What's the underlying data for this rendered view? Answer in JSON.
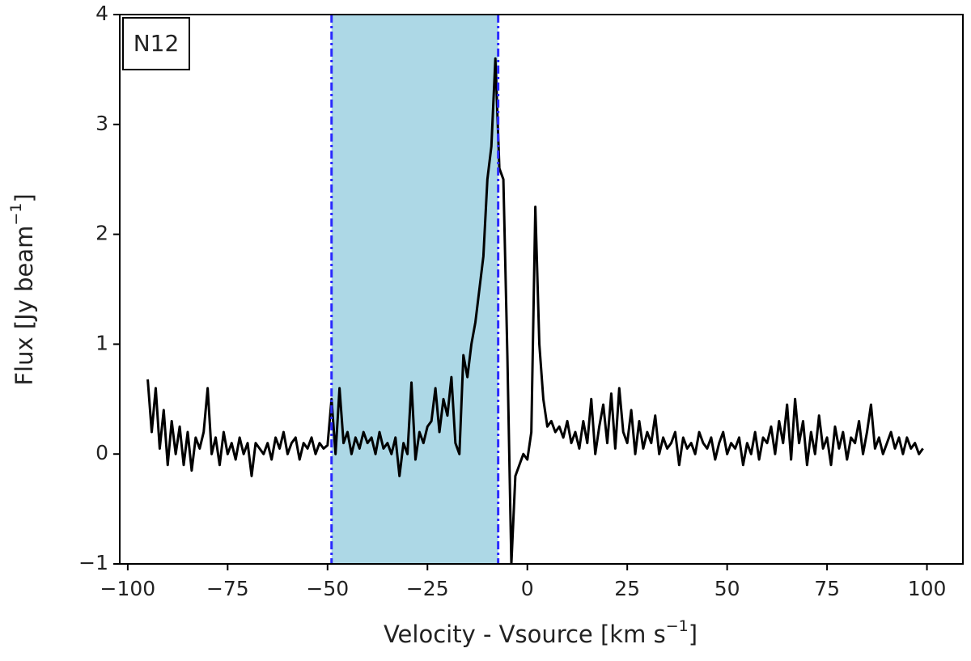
{
  "chart_data": {
    "type": "line",
    "xlabel": {
      "text": "Velocity - Vsource [km s",
      "sup": "−1",
      "close": "]"
    },
    "ylabel": {
      "text": "Flux [Jy beam",
      "sup": "−1",
      "close": "]"
    },
    "annotation": "N12",
    "xlim": [
      -102,
      109
    ],
    "ylim": [
      -1,
      4
    ],
    "xticks": [
      {
        "value": -100,
        "label": "−100"
      },
      {
        "value": -75,
        "label": "−75"
      },
      {
        "value": -50,
        "label": "−50"
      },
      {
        "value": -25,
        "label": "−25"
      },
      0,
      25,
      50,
      75,
      100
    ],
    "yticks": [
      {
        "value": -1,
        "label": "−1"
      },
      0,
      1,
      2,
      3,
      4
    ],
    "span": {
      "x": [
        -49,
        -7.3
      ],
      "color": "#add8e6",
      "line_color": "#2a2aff"
    },
    "color": "#000000",
    "x": [
      -95,
      -94,
      -93,
      -92,
      -91,
      -90,
      -89,
      -88,
      -87,
      -86,
      -85,
      -84,
      -83,
      -82,
      -81,
      -80,
      -79,
      -78,
      -77,
      -76,
      -75,
      -74,
      -73,
      -72,
      -71,
      -70,
      -69,
      -68,
      -67,
      -66,
      -65,
      -64,
      -63,
      -62,
      -61,
      -60,
      -59,
      -58,
      -57,
      -56,
      -55,
      -54,
      -53,
      -52,
      -51,
      -50,
      -49,
      -48,
      -47,
      -46,
      -45,
      -44,
      -43,
      -42,
      -41,
      -40,
      -39,
      -38,
      -37,
      -36,
      -35,
      -34,
      -33,
      -32,
      -31,
      -30,
      -29,
      -28,
      -27,
      -26,
      -25,
      -24,
      -23,
      -22,
      -21,
      -20,
      -19,
      -18,
      -17,
      -16,
      -15,
      -14,
      -13,
      -12,
      -11,
      -10,
      -9,
      -8,
      -7,
      -6,
      -5,
      -4,
      -3,
      -2,
      -1,
      0,
      1,
      2,
      3,
      4,
      5,
      6,
      7,
      8,
      9,
      10,
      11,
      12,
      13,
      14,
      15,
      16,
      17,
      18,
      19,
      20,
      21,
      22,
      23,
      24,
      25,
      26,
      27,
      28,
      29,
      30,
      31,
      32,
      33,
      34,
      35,
      36,
      37,
      38,
      39,
      40,
      41,
      42,
      43,
      44,
      45,
      46,
      47,
      48,
      49,
      50,
      51,
      52,
      53,
      54,
      55,
      56,
      57,
      58,
      59,
      60,
      61,
      62,
      63,
      64,
      65,
      66,
      67,
      68,
      69,
      70,
      71,
      72,
      73,
      74,
      75,
      76,
      77,
      78,
      79,
      80,
      81,
      82,
      83,
      84,
      85,
      86,
      87,
      88,
      89,
      90,
      91,
      92,
      93,
      94,
      95,
      96,
      97,
      98,
      99
    ],
    "values": [
      0.68,
      0.2,
      0.6,
      0.05,
      0.4,
      -0.1,
      0.3,
      0.0,
      0.25,
      -0.1,
      0.2,
      -0.15,
      0.15,
      0.05,
      0.2,
      0.6,
      0.0,
      0.15,
      -0.1,
      0.2,
      0.0,
      0.1,
      -0.05,
      0.15,
      0.0,
      0.1,
      -0.2,
      0.1,
      0.05,
      0.0,
      0.1,
      -0.05,
      0.15,
      0.05,
      0.2,
      0.0,
      0.1,
      0.15,
      -0.05,
      0.1,
      0.05,
      0.15,
      0.0,
      0.1,
      0.05,
      0.08,
      0.5,
      0.0,
      0.6,
      0.1,
      0.2,
      0.0,
      0.15,
      0.05,
      0.2,
      0.1,
      0.15,
      0.0,
      0.2,
      0.05,
      0.1,
      0.0,
      0.15,
      -0.2,
      0.1,
      0.0,
      0.65,
      -0.05,
      0.2,
      0.1,
      0.25,
      0.3,
      0.6,
      0.2,
      0.5,
      0.35,
      0.7,
      0.1,
      0.0,
      0.9,
      0.7,
      1.0,
      1.2,
      1.5,
      1.8,
      2.5,
      2.8,
      3.6,
      2.6,
      2.5,
      0.9,
      -1.0,
      -0.2,
      -0.1,
      0.0,
      -0.05,
      0.2,
      2.25,
      1.0,
      0.5,
      0.25,
      0.3,
      0.2,
      0.25,
      0.15,
      0.3,
      0.1,
      0.2,
      0.05,
      0.3,
      0.1,
      0.5,
      0.0,
      0.25,
      0.45,
      0.1,
      0.55,
      0.05,
      0.6,
      0.2,
      0.1,
      0.4,
      0.0,
      0.3,
      0.05,
      0.2,
      0.1,
      0.35,
      0.0,
      0.15,
      0.05,
      0.1,
      0.2,
      -0.1,
      0.15,
      0.05,
      0.1,
      0.0,
      0.2,
      0.1,
      0.05,
      0.15,
      -0.05,
      0.1,
      0.2,
      0.0,
      0.1,
      0.05,
      0.15,
      -0.1,
      0.1,
      0.0,
      0.2,
      -0.05,
      0.15,
      0.1,
      0.25,
      0.0,
      0.3,
      0.1,
      0.45,
      -0.05,
      0.5,
      0.1,
      0.3,
      -0.1,
      0.2,
      0.0,
      0.35,
      0.05,
      0.15,
      -0.1,
      0.25,
      0.05,
      0.2,
      -0.05,
      0.15,
      0.1,
      0.3,
      0.0,
      0.2,
      0.45,
      0.05,
      0.15,
      0.0,
      0.1,
      0.2,
      0.05,
      0.15,
      0.0,
      0.15,
      0.05,
      0.1,
      0.0,
      0.05
    ]
  }
}
